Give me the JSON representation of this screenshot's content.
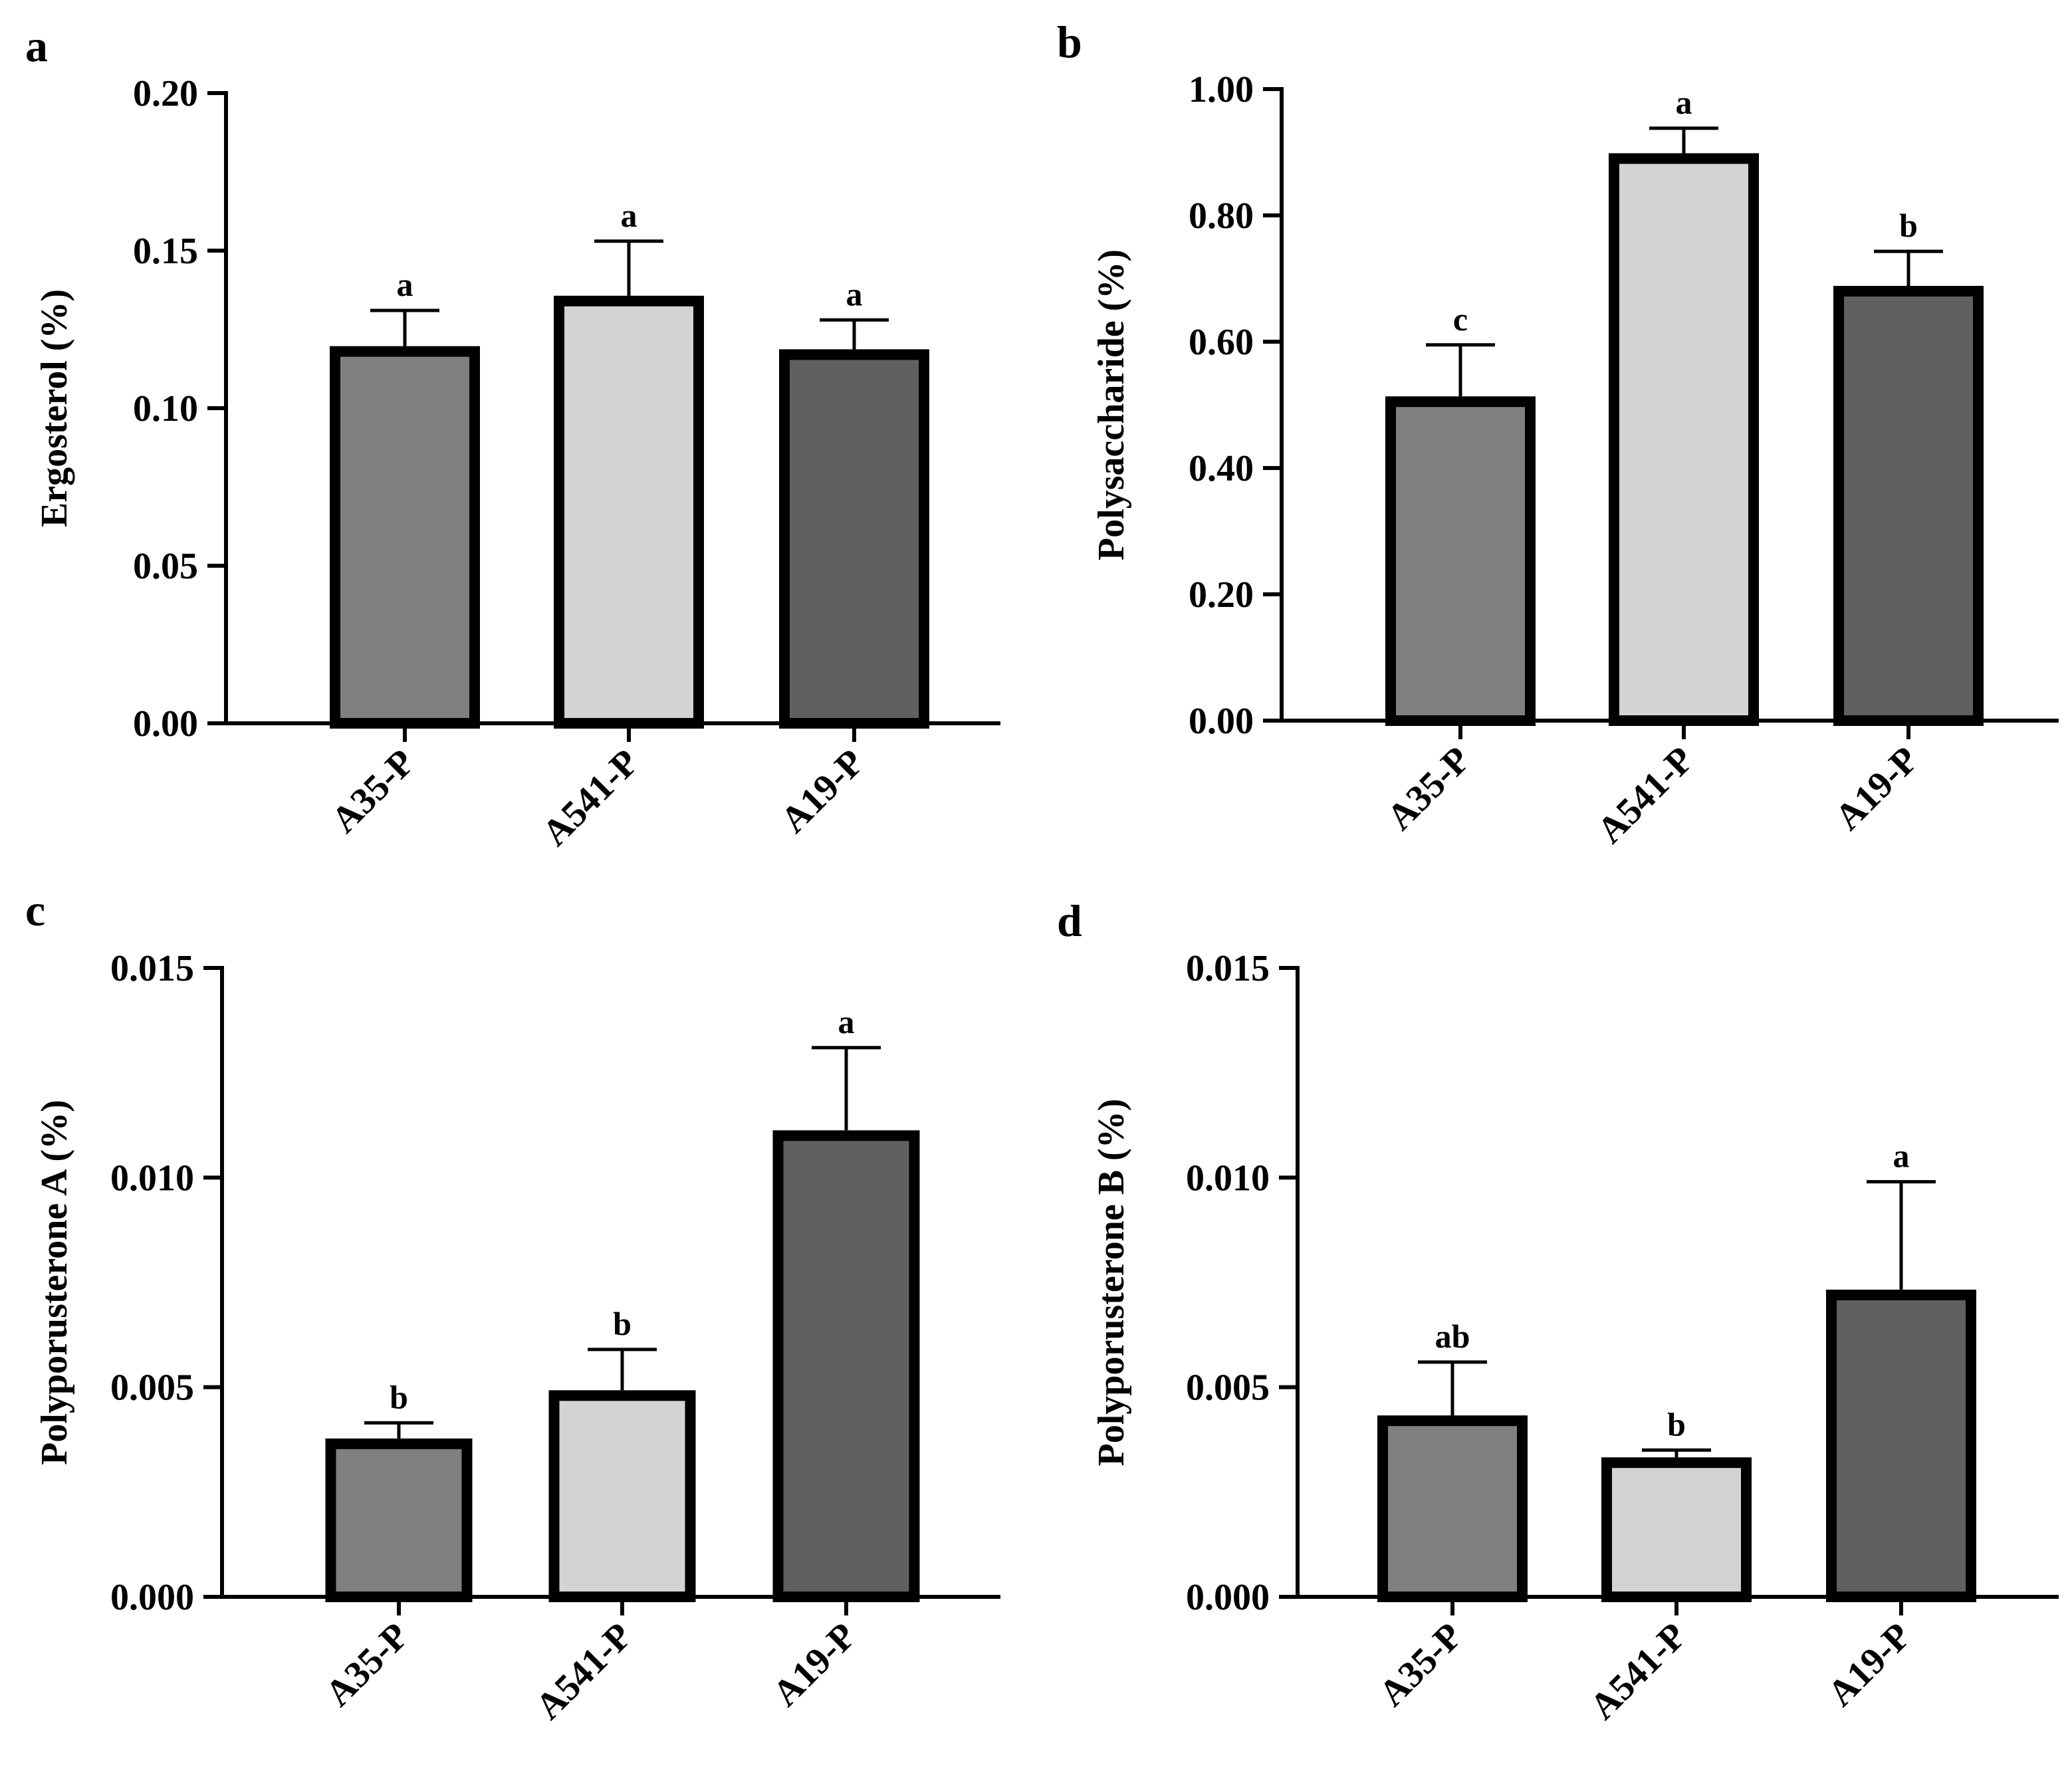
{
  "chart_data": [
    {
      "panel": "a",
      "type": "bar",
      "ylabel": "Ergosterol (%)",
      "categories": [
        "A35-P",
        "A541-P",
        "A19-P"
      ],
      "values": [
        0.118,
        0.134,
        0.117
      ],
      "errors": [
        0.013,
        0.019,
        0.011
      ],
      "significance": [
        "a",
        "a",
        "a"
      ],
      "ylim": [
        0,
        0.2
      ],
      "yticks": [
        "0.00",
        "0.05",
        "0.10",
        "0.15",
        "0.20"
      ],
      "colors": [
        "#808080",
        "#d3d3d3",
        "#606060"
      ]
    },
    {
      "panel": "b",
      "type": "bar",
      "ylabel": "Polysaccharide (%)",
      "categories": [
        "A35-P",
        "A541-P",
        "A19-P"
      ],
      "values": [
        0.505,
        0.89,
        0.68
      ],
      "errors": [
        0.09,
        0.048,
        0.063
      ],
      "significance": [
        "c",
        "a",
        "b"
      ],
      "ylim": [
        0,
        1
      ],
      "yticks": [
        "0.00",
        "0.20",
        "0.40",
        "0.60",
        "0.80",
        "1.00"
      ],
      "colors": [
        "#808080",
        "#d3d3d3",
        "#606060"
      ]
    },
    {
      "panel": "c",
      "type": "bar",
      "ylabel": "Polyporusterone A (%)",
      "categories": [
        "A35-P",
        "A541-P",
        "A19-P"
      ],
      "values": [
        0.00365,
        0.0048,
        0.011
      ],
      "errors": [
        0.0005,
        0.0011,
        0.0021
      ],
      "significance": [
        "b",
        "b",
        "a"
      ],
      "ylim": [
        0,
        0.015
      ],
      "yticks": [
        "0.000",
        "0.005",
        "0.010",
        "0.015"
      ],
      "colors": [
        "#808080",
        "#d3d3d3",
        "#606060"
      ]
    },
    {
      "panel": "d",
      "type": "bar",
      "ylabel": "Polyporusterone B (%)",
      "categories": [
        "A35-P",
        "A541-P",
        "A19-P"
      ],
      "values": [
        0.0042,
        0.0032,
        0.0072
      ],
      "errors": [
        0.0014,
        0.0003,
        0.0027
      ],
      "significance": [
        "ab",
        "b",
        "a"
      ],
      "ylim": [
        0,
        0.015
      ],
      "yticks": [
        "0.000",
        "0.005",
        "0.010",
        "0.015"
      ],
      "colors": [
        "#808080",
        "#d3d3d3",
        "#606060"
      ]
    }
  ]
}
